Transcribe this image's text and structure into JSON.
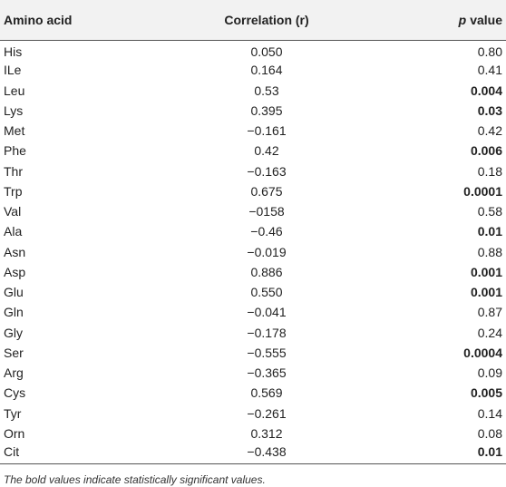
{
  "table": {
    "header": [
      "Amino acid",
      "Correlation (r)",
      {
        "italic": "p",
        "text": "value"
      }
    ],
    "rows": [
      {
        "amino_acid": "His",
        "r": "0.050",
        "p": "0.80",
        "p_bold": false
      },
      {
        "amino_acid": "ILe",
        "r": "0.164",
        "p": "0.41",
        "p_bold": false
      },
      {
        "amino_acid": "Leu",
        "r": "0.53",
        "p": "0.004",
        "p_bold": true
      },
      {
        "amino_acid": "Lys",
        "r": "0.395",
        "p": "0.03",
        "p_bold": true
      },
      {
        "amino_acid": "Met",
        "r": "−0.161",
        "p": "0.42",
        "p_bold": false
      },
      {
        "amino_acid": "Phe",
        "r": "0.42",
        "p": "0.006",
        "p_bold": true
      },
      {
        "amino_acid": "Thr",
        "r": "−0.163",
        "p": "0.18",
        "p_bold": false
      },
      {
        "amino_acid": "Trp",
        "r": "0.675",
        "p": "0.0001",
        "p_bold": true
      },
      {
        "amino_acid": "Val",
        "r": "−0158",
        "p": "0.58",
        "p_bold": false
      },
      {
        "amino_acid": "Ala",
        "r": "−0.46",
        "p": "0.01",
        "p_bold": true
      },
      {
        "amino_acid": "Asn",
        "r": "−0.019",
        "p": "0.88",
        "p_bold": false
      },
      {
        "amino_acid": "Asp",
        "r": "0.886",
        "p": "0.001",
        "p_bold": true
      },
      {
        "amino_acid": "Glu",
        "r": "0.550",
        "p": "0.001",
        "p_bold": true
      },
      {
        "amino_acid": "Gln",
        "r": "−0.041",
        "p": "0.87",
        "p_bold": false
      },
      {
        "amino_acid": "Gly",
        "r": "−0.178",
        "p": "0.24",
        "p_bold": false
      },
      {
        "amino_acid": "Ser",
        "r": "−0.555",
        "p": "0.0004",
        "p_bold": true
      },
      {
        "amino_acid": "Arg",
        "r": "−0.365",
        "p": "0.09",
        "p_bold": false
      },
      {
        "amino_acid": "Cys",
        "r": "0.569",
        "p": "0.005",
        "p_bold": true
      },
      {
        "amino_acid": "Tyr",
        "r": "−0.261",
        "p": "0.14",
        "p_bold": false
      },
      {
        "amino_acid": "Orn",
        "r": "0.312",
        "p": "0.08",
        "p_bold": false
      },
      {
        "amino_acid": "Cit",
        "r": "−0.438",
        "p": "0.01",
        "p_bold": true
      }
    ],
    "footnote": "The bold values indicate statistically significant values."
  }
}
